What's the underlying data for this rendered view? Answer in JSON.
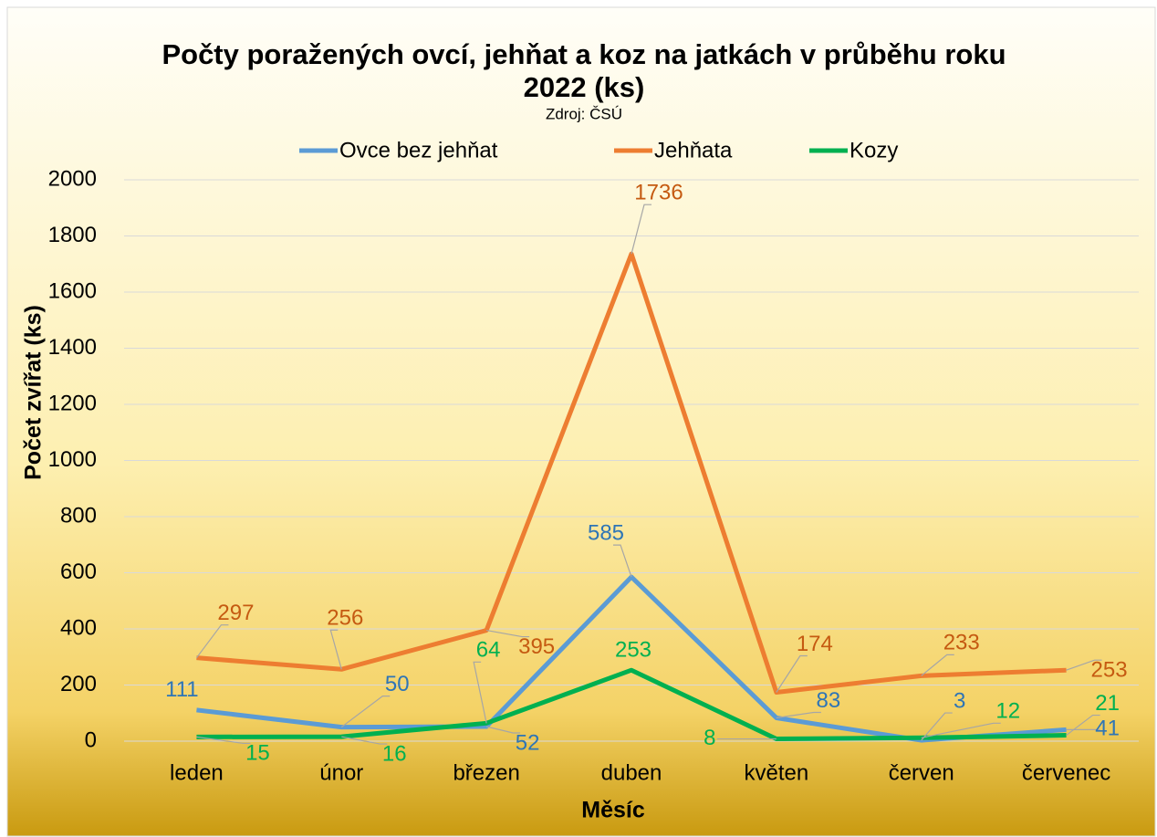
{
  "chart_data": {
    "type": "line",
    "title": "Počty poražených ovcí, jehňat a koz na jatkách v průběhu roku 2022 (ks)",
    "subtitle": "Zdroj: ČSÚ",
    "x_label": "Měsíc",
    "y_label": "Počet zvířat (ks)",
    "categories": [
      "leden",
      "únor",
      "březen",
      "duben",
      "květen",
      "červen",
      "červenec"
    ],
    "series": [
      {
        "name": "Ovce bez jehňat",
        "color": "#5b9bd5",
        "values": [
          111,
          50,
          52,
          585,
          83,
          3,
          41
        ]
      },
      {
        "name": "Jehňata",
        "color": "#ed7d31",
        "values": [
          297,
          256,
          395,
          1736,
          174,
          233,
          253
        ]
      },
      {
        "name": "Kozy",
        "color": "#00b050",
        "values": [
          15,
          16,
          64,
          253,
          8,
          12,
          21
        ]
      }
    ],
    "ylim": [
      0,
      2000
    ],
    "yticks": [
      0,
      200,
      400,
      600,
      800,
      1000,
      1200,
      1400,
      1600,
      1800,
      2000
    ],
    "grid": true,
    "legend": "top"
  }
}
